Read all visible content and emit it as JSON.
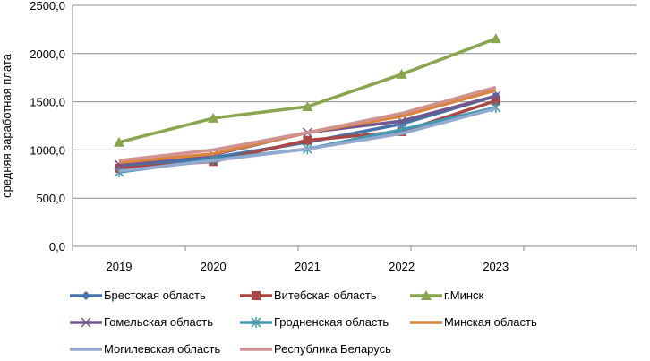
{
  "chart_data": {
    "type": "line",
    "title": "",
    "xlabel": "",
    "ylabel": "средняя заработная плата",
    "ylim": [
      0,
      2500
    ],
    "ytick_step": 500,
    "ytick_labels": [
      "0,0",
      "500,0",
      "1000,0",
      "1500,0",
      "2000,0",
      "2500,0"
    ],
    "grid": true,
    "legend_position": "bottom",
    "categories": [
      "2019",
      "2020",
      "2021",
      "2022",
      "2023"
    ],
    "series": [
      {
        "name": "Брестская область",
        "color": "#4572A7",
        "marker": "diamond",
        "values": [
          820,
          920,
          1080,
          1270,
          1560
        ]
      },
      {
        "name": "Витебская область",
        "color": "#AA4643",
        "marker": "square",
        "values": [
          810,
          880,
          1100,
          1190,
          1510
        ]
      },
      {
        "name": "г.Минск",
        "color": "#89A54E",
        "marker": "triangle",
        "values": [
          1080,
          1330,
          1450,
          1785,
          2155
        ]
      },
      {
        "name": "Гомельская область",
        "color": "#71588F",
        "marker": "x",
        "values": [
          850,
          950,
          1180,
          1300,
          1560
        ]
      },
      {
        "name": "Гродненская область",
        "color": "#4198AF",
        "marker": "star",
        "values": [
          770,
          900,
          1010,
          1210,
          1440
        ]
      },
      {
        "name": "Минская область",
        "color": "#DB843D",
        "marker": "none",
        "values": [
          870,
          960,
          1180,
          1350,
          1620
        ]
      },
      {
        "name": "Могилевская область",
        "color": "#93A9CF",
        "marker": "none",
        "values": [
          780,
          890,
          1010,
          1170,
          1430
        ]
      },
      {
        "name": "Республика Беларусь",
        "color": "#D19392",
        "marker": "none",
        "values": [
          890,
          1000,
          1180,
          1380,
          1650
        ]
      }
    ]
  }
}
